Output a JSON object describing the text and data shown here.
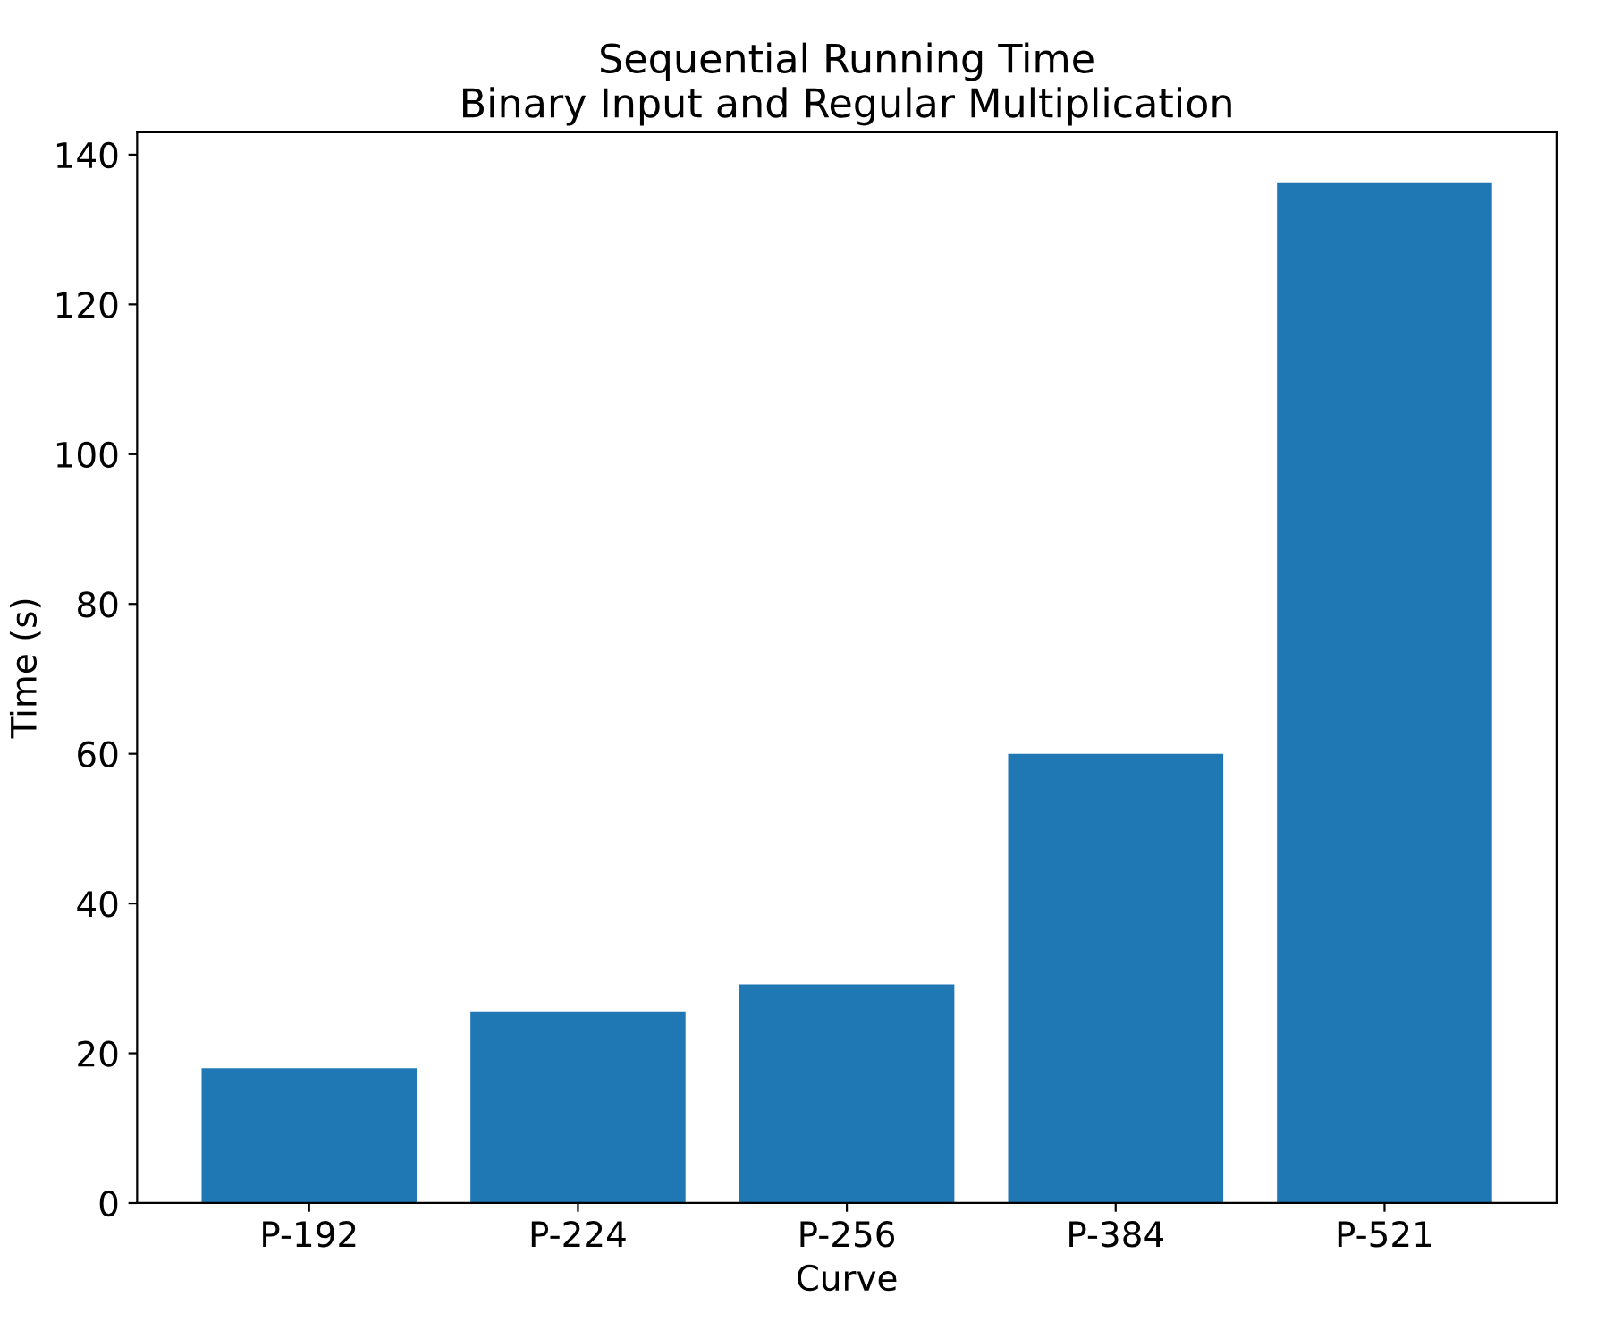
{
  "chart_data": {
    "type": "bar",
    "title": "Sequential Running Time\nBinary Input and Regular Multiplication",
    "xlabel": "Curve",
    "ylabel": "Time (s)",
    "categories": [
      "P-192",
      "P-224",
      "P-256",
      "P-384",
      "P-521"
    ],
    "values": [
      18,
      25.6,
      29.2,
      60,
      136.2
    ],
    "color": "#1f77b4",
    "ylim": [
      0,
      143
    ],
    "yticks": [
      0,
      20,
      40,
      60,
      80,
      100,
      120,
      140
    ],
    "grid": false
  }
}
